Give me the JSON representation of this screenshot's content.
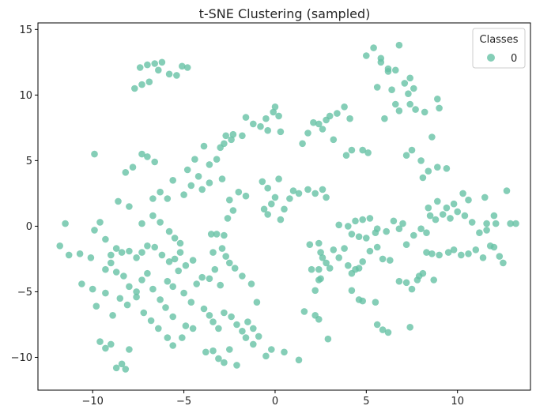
{
  "chart_data": {
    "type": "scatter",
    "title": "t-SNE Clustering (sampled)",
    "xlabel": "",
    "ylabel": "",
    "xlim": [
      -13,
      14
    ],
    "ylim": [
      -12.5,
      15.5
    ],
    "xticks": [
      -10,
      -5,
      0,
      5,
      10
    ],
    "xtick_labels": [
      "−10",
      "−5",
      "0",
      "5",
      "10"
    ],
    "yticks": [
      -10,
      -5,
      0,
      5,
      10,
      15
    ],
    "ytick_labels": [
      "−10",
      "−5",
      "0",
      "5",
      "10",
      "15"
    ],
    "grid": false,
    "legend": {
      "title": "Classes",
      "placement": "top-right",
      "entries": [
        "0"
      ]
    },
    "series": [
      {
        "name": "0",
        "color": "#66c2a5",
        "points": [
          [
            -7.4,
            12.1
          ],
          [
            -7.0,
            12.3
          ],
          [
            -6.6,
            12.4
          ],
          [
            -6.2,
            12.5
          ],
          [
            -5.8,
            11.6
          ],
          [
            -5.4,
            11.5
          ],
          [
            -5.1,
            12.2
          ],
          [
            -4.8,
            12.1
          ],
          [
            -6.9,
            11.0
          ],
          [
            -7.3,
            10.8
          ],
          [
            -7.7,
            10.5
          ],
          [
            -6.4,
            11.9
          ],
          [
            -7.3,
            5.5
          ],
          [
            -7.0,
            5.3
          ],
          [
            -6.6,
            4.9
          ],
          [
            -7.8,
            4.5
          ],
          [
            -8.2,
            4.1
          ],
          [
            -9.9,
            5.5
          ],
          [
            -4.8,
            4.3
          ],
          [
            -4.2,
            3.8
          ],
          [
            -3.6,
            4.7
          ],
          [
            -3.2,
            5.1
          ],
          [
            -3.0,
            6.0
          ],
          [
            -2.8,
            6.3
          ],
          [
            -2.4,
            6.6
          ],
          [
            -1.8,
            6.9
          ],
          [
            -3.9,
            6.1
          ],
          [
            -4.4,
            5.1
          ],
          [
            -2.9,
            3.6
          ],
          [
            -3.6,
            3.3
          ],
          [
            -4.0,
            2.8
          ],
          [
            -5.0,
            2.4
          ],
          [
            -5.6,
            3.5
          ],
          [
            -5.9,
            2.1
          ],
          [
            -6.3,
            2.6
          ],
          [
            -6.7,
            2.1
          ],
          [
            -4.6,
            3.1
          ],
          [
            -2.7,
            6.9
          ],
          [
            -2.3,
            7.0
          ],
          [
            -1.2,
            7.8
          ],
          [
            -0.8,
            7.6
          ],
          [
            -0.5,
            8.2
          ],
          [
            -0.1,
            8.7
          ],
          [
            0.2,
            8.4
          ],
          [
            0.0,
            9.1
          ],
          [
            -0.4,
            7.3
          ],
          [
            0.3,
            7.2
          ],
          [
            -1.6,
            8.3
          ],
          [
            1.5,
            6.3
          ],
          [
            1.8,
            7.1
          ],
          [
            2.1,
            7.9
          ],
          [
            2.4,
            7.8
          ],
          [
            2.8,
            8.1
          ],
          [
            3.0,
            8.4
          ],
          [
            3.4,
            8.6
          ],
          [
            3.8,
            9.1
          ],
          [
            4.1,
            8.2
          ],
          [
            2.6,
            7.4
          ],
          [
            3.2,
            6.6
          ],
          [
            4.2,
            5.8
          ],
          [
            3.9,
            5.4
          ],
          [
            4.8,
            5.8
          ],
          [
            5.1,
            5.6
          ],
          [
            5.0,
            13.0
          ],
          [
            5.4,
            13.6
          ],
          [
            5.8,
            12.8
          ],
          [
            6.2,
            12.0
          ],
          [
            6.6,
            11.9
          ],
          [
            6.8,
            13.8
          ],
          [
            6.2,
            11.8
          ],
          [
            5.8,
            12.5
          ],
          [
            7.4,
            11.3
          ],
          [
            7.1,
            10.9
          ],
          [
            7.6,
            10.5
          ],
          [
            7.3,
            10.1
          ],
          [
            6.4,
            10.4
          ],
          [
            5.6,
            10.6
          ],
          [
            6.6,
            9.3
          ],
          [
            6.0,
            8.2
          ],
          [
            6.8,
            8.8
          ],
          [
            7.4,
            9.3
          ],
          [
            7.7,
            8.9
          ],
          [
            8.2,
            8.7
          ],
          [
            8.9,
            9.7
          ],
          [
            9.0,
            9.0
          ],
          [
            8.6,
            6.8
          ],
          [
            7.5,
            5.8
          ],
          [
            7.2,
            5.4
          ],
          [
            8.0,
            5.0
          ],
          [
            8.4,
            4.2
          ],
          [
            8.9,
            4.5
          ],
          [
            9.4,
            4.4
          ],
          [
            8.1,
            3.7
          ],
          [
            -3.5,
            -0.6
          ],
          [
            -3.2,
            -0.6
          ],
          [
            -2.8,
            -0.7
          ],
          [
            -2.6,
            0.6
          ],
          [
            -2.5,
            2.0
          ],
          [
            -2.3,
            1.2
          ],
          [
            -2.0,
            2.6
          ],
          [
            -1.6,
            2.3
          ],
          [
            -0.7,
            3.4
          ],
          [
            -0.4,
            2.9
          ],
          [
            0.0,
            2.2
          ],
          [
            0.2,
            3.6
          ],
          [
            -0.2,
            1.7
          ],
          [
            -0.6,
            1.3
          ],
          [
            -0.4,
            0.9
          ],
          [
            0.3,
            0.5
          ],
          [
            0.5,
            1.3
          ],
          [
            0.8,
            2.1
          ],
          [
            1.0,
            2.7
          ],
          [
            1.3,
            2.5
          ],
          [
            1.8,
            2.8
          ],
          [
            2.2,
            2.5
          ],
          [
            2.6,
            2.8
          ],
          [
            2.8,
            2.2
          ],
          [
            -9.9,
            -0.3
          ],
          [
            -10.1,
            -2.4
          ],
          [
            -10.7,
            -2.1
          ],
          [
            -11.3,
            -2.2
          ],
          [
            -11.5,
            0.2
          ],
          [
            -11.8,
            -1.5
          ],
          [
            -9.6,
            0.3
          ],
          [
            -9.3,
            -1.0
          ],
          [
            -9.0,
            -2.2
          ],
          [
            -8.7,
            -1.7
          ],
          [
            -8.4,
            -2.0
          ],
          [
            -8.0,
            -1.9
          ],
          [
            -7.6,
            -2.4
          ],
          [
            -7.3,
            -2.0
          ],
          [
            -7.0,
            -1.5
          ],
          [
            -6.6,
            -1.6
          ],
          [
            -6.2,
            -2.2
          ],
          [
            -5.8,
            -2.7
          ],
          [
            -5.5,
            -2.5
          ],
          [
            -5.2,
            -2.0
          ],
          [
            -4.9,
            -3.0
          ],
          [
            -4.5,
            -2.6
          ],
          [
            -8.6,
            1.9
          ],
          [
            -8.0,
            1.5
          ],
          [
            -7.3,
            0.2
          ],
          [
            -6.7,
            0.8
          ],
          [
            -6.3,
            0.3
          ],
          [
            -5.8,
            -0.4
          ],
          [
            -5.5,
            -0.9
          ],
          [
            -5.2,
            -1.3
          ],
          [
            -9.3,
            -3.3
          ],
          [
            -9.0,
            -2.8
          ],
          [
            -8.7,
            -3.5
          ],
          [
            -8.3,
            -3.8
          ],
          [
            -8.0,
            -4.6
          ],
          [
            -7.6,
            -5.0
          ],
          [
            -7.3,
            -4.1
          ],
          [
            -7.0,
            -3.6
          ],
          [
            -6.7,
            -4.8
          ],
          [
            -6.3,
            -5.6
          ],
          [
            -5.9,
            -4.2
          ],
          [
            -5.6,
            -4.6
          ],
          [
            -5.3,
            -3.4
          ],
          [
            -5.0,
            -5.1
          ],
          [
            -4.6,
            -5.8
          ],
          [
            -4.3,
            -4.4
          ],
          [
            -4.0,
            -3.9
          ],
          [
            -3.6,
            -4.0
          ],
          [
            -3.3,
            -3.3
          ],
          [
            -3.0,
            -4.5
          ],
          [
            -10.6,
            -4.4
          ],
          [
            -10.0,
            -4.8
          ],
          [
            -9.8,
            -6.1
          ],
          [
            -9.3,
            -5.1
          ],
          [
            -8.9,
            -6.8
          ],
          [
            -8.5,
            -5.5
          ],
          [
            -8.1,
            -6.0
          ],
          [
            -7.6,
            -5.4
          ],
          [
            -7.2,
            -6.6
          ],
          [
            -6.8,
            -7.2
          ],
          [
            -6.4,
            -7.8
          ],
          [
            -6.0,
            -6.2
          ],
          [
            -5.6,
            -6.9
          ],
          [
            -9.6,
            -8.8
          ],
          [
            -9.3,
            -9.3
          ],
          [
            -9.0,
            -9.0
          ],
          [
            -8.7,
            -10.8
          ],
          [
            -8.4,
            -10.5
          ],
          [
            -8.2,
            -10.9
          ],
          [
            -8.0,
            -9.4
          ],
          [
            -5.9,
            -8.5
          ],
          [
            -5.6,
            -9.1
          ],
          [
            -5.1,
            -8.5
          ],
          [
            -4.9,
            -7.6
          ],
          [
            -4.5,
            -7.8
          ],
          [
            -3.9,
            -6.3
          ],
          [
            -3.6,
            -6.8
          ],
          [
            -3.4,
            -7.3
          ],
          [
            -3.1,
            -7.8
          ],
          [
            -2.8,
            -6.6
          ],
          [
            -2.4,
            -6.9
          ],
          [
            -2.1,
            -7.5
          ],
          [
            -1.8,
            -8.0
          ],
          [
            -1.5,
            -7.3
          ],
          [
            -1.2,
            -7.8
          ],
          [
            -1.0,
            -5.8
          ],
          [
            -1.3,
            -4.4
          ],
          [
            -1.8,
            -3.8
          ],
          [
            -2.2,
            -3.2
          ],
          [
            -2.5,
            -2.8
          ],
          [
            -2.7,
            -2.3
          ],
          [
            -2.9,
            -1.7
          ],
          [
            -3.4,
            -2.0
          ],
          [
            -3.8,
            -9.6
          ],
          [
            -3.4,
            -9.5
          ],
          [
            -3.1,
            -10.1
          ],
          [
            -2.8,
            -10.4
          ],
          [
            -2.5,
            -9.4
          ],
          [
            -2.1,
            -10.6
          ],
          [
            -1.6,
            -8.5
          ],
          [
            -1.2,
            -9.0
          ],
          [
            -0.9,
            -8.4
          ],
          [
            -0.5,
            -9.9
          ],
          [
            -0.2,
            -9.4
          ],
          [
            0.5,
            -9.6
          ],
          [
            1.3,
            -10.2
          ],
          [
            1.9,
            -1.4
          ],
          [
            2.4,
            -1.3
          ],
          [
            2.5,
            -2.0
          ],
          [
            2.6,
            -2.4
          ],
          [
            2.8,
            -2.8
          ],
          [
            3.0,
            -3.2
          ],
          [
            2.4,
            -3.3
          ],
          [
            2.0,
            -3.3
          ],
          [
            2.5,
            -4.0
          ],
          [
            2.4,
            -4.1
          ],
          [
            2.2,
            -4.9
          ],
          [
            3.2,
            -1.8
          ],
          [
            3.5,
            -2.4
          ],
          [
            3.8,
            -1.7
          ],
          [
            4.0,
            -3.0
          ],
          [
            4.2,
            -3.6
          ],
          [
            4.6,
            -3.2
          ],
          [
            4.4,
            -3.3
          ],
          [
            4.8,
            -2.7
          ],
          [
            5.2,
            -1.9
          ],
          [
            5.6,
            -1.6
          ],
          [
            5.9,
            -2.5
          ],
          [
            6.3,
            -2.6
          ],
          [
            5.5,
            -0.5
          ],
          [
            5.0,
            -0.9
          ],
          [
            4.6,
            -0.8
          ],
          [
            4.2,
            -0.6
          ],
          [
            4.0,
            0.0
          ],
          [
            3.5,
            0.1
          ],
          [
            4.4,
            0.4
          ],
          [
            4.8,
            0.5
          ],
          [
            5.2,
            0.6
          ],
          [
            5.6,
            -0.2
          ],
          [
            6.1,
            -0.4
          ],
          [
            6.8,
            -0.2
          ],
          [
            7.0,
            0.2
          ],
          [
            6.5,
            0.4
          ],
          [
            4.8,
            -5.7
          ],
          [
            4.6,
            -5.6
          ],
          [
            5.5,
            -5.8
          ],
          [
            4.2,
            -4.9
          ],
          [
            5.6,
            -7.5
          ],
          [
            5.9,
            -7.9
          ],
          [
            6.2,
            -8.1
          ],
          [
            7.4,
            -7.7
          ],
          [
            1.6,
            -6.5
          ],
          [
            2.2,
            -6.8
          ],
          [
            2.4,
            -7.1
          ],
          [
            2.9,
            -8.6
          ],
          [
            7.5,
            -4.8
          ],
          [
            7.8,
            -4.1
          ],
          [
            7.2,
            -4.3
          ],
          [
            6.8,
            -4.2
          ],
          [
            8.1,
            -3.6
          ],
          [
            8.7,
            -4.1
          ],
          [
            7.9,
            -3.8
          ],
          [
            8.3,
            -2.0
          ],
          [
            8.6,
            -2.1
          ],
          [
            9.0,
            -2.2
          ],
          [
            9.5,
            -2.0
          ],
          [
            9.8,
            -1.8
          ],
          [
            10.2,
            -2.2
          ],
          [
            10.6,
            -2.1
          ],
          [
            11.0,
            -1.8
          ],
          [
            11.4,
            -2.4
          ],
          [
            11.8,
            -1.5
          ],
          [
            12.0,
            -1.6
          ],
          [
            12.3,
            -2.3
          ],
          [
            12.5,
            -2.8
          ],
          [
            7.2,
            -1.4
          ],
          [
            7.6,
            -0.7
          ],
          [
            8.0,
            -0.2
          ],
          [
            8.3,
            -0.5
          ],
          [
            8.5,
            0.8
          ],
          [
            8.4,
            1.4
          ],
          [
            8.8,
            0.5
          ],
          [
            9.2,
            0.9
          ],
          [
            9.6,
            0.6
          ],
          [
            10.0,
            1.1
          ],
          [
            10.4,
            0.8
          ],
          [
            10.8,
            0.3
          ],
          [
            11.2,
            -0.5
          ],
          [
            11.6,
            0.2
          ],
          [
            12.1,
            0.2
          ],
          [
            12.9,
            0.2
          ],
          [
            13.2,
            0.2
          ],
          [
            12.7,
            2.7
          ],
          [
            11.5,
            2.2
          ],
          [
            10.6,
            2.0
          ],
          [
            10.3,
            2.5
          ],
          [
            9.8,
            1.7
          ],
          [
            9.4,
            1.4
          ],
          [
            8.9,
            1.9
          ],
          [
            12.0,
            0.8
          ],
          [
            11.6,
            -0.3
          ]
        ]
      }
    ]
  }
}
